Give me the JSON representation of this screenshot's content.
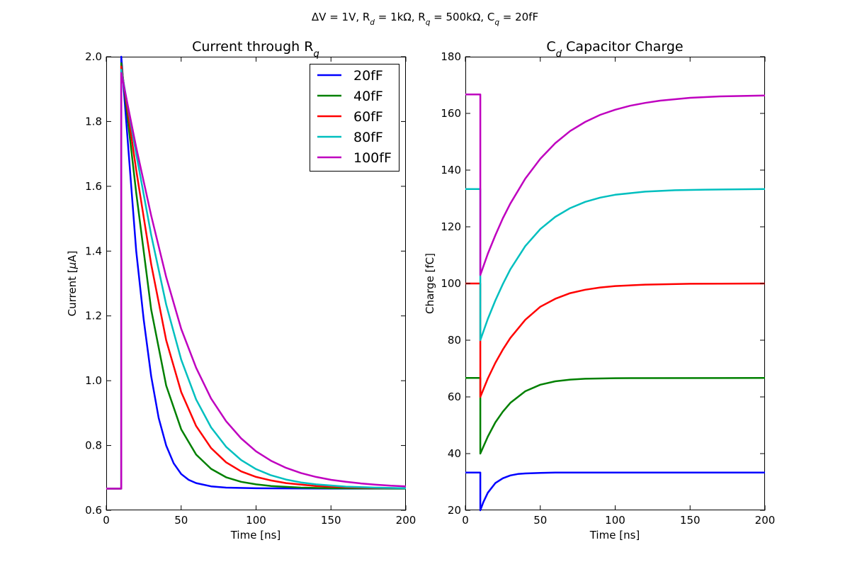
{
  "figure": {
    "suptitle_parts": [
      {
        "t": "ΔV = 1V, R"
      },
      {
        "t": "d",
        "sub": true
      },
      {
        "t": " = 1kΩ, R"
      },
      {
        "t": "q",
        "sub": true
      },
      {
        "t": " = 500kΩ, C"
      },
      {
        "t": "q",
        "sub": true
      },
      {
        "t": " = 20fF"
      }
    ]
  },
  "chart_data": [
    {
      "type": "line",
      "title_parts": [
        {
          "t": "Current through R"
        },
        {
          "t": "q",
          "sub": true
        }
      ],
      "xlabel": "Time [ns]",
      "ylabel_parts": [
        {
          "t": "Current ["
        },
        {
          "t": "μ",
          "italic": true
        },
        {
          "t": "A]"
        }
      ],
      "xlim": [
        0,
        200
      ],
      "ylim": [
        0.6,
        2.0
      ],
      "xticks": [
        "0",
        "50",
        "100",
        "150",
        "200"
      ],
      "yticks": [
        "0.6",
        "0.8",
        "1.0",
        "1.2",
        "1.4",
        "1.6",
        "1.8",
        "2.0"
      ],
      "grid": false,
      "legend": {
        "placement": "top-right"
      },
      "series": [
        {
          "name": "20fF",
          "color": "#0000ff",
          "points": [
            [
              0,
              0.667
            ],
            [
              10,
              0.667
            ],
            [
              10,
              2.0
            ],
            [
              20,
              1.4
            ],
            [
              25,
              1.188
            ],
            [
              30,
              1.014
            ],
            [
              35,
              0.885
            ],
            [
              40,
              0.8
            ],
            [
              45,
              0.745
            ],
            [
              50,
              0.712
            ],
            [
              55,
              0.694
            ],
            [
              60,
              0.684
            ],
            [
              70,
              0.674
            ],
            [
              80,
              0.67
            ],
            [
              100,
              0.668
            ],
            [
              150,
              0.667
            ],
            [
              200,
              0.667
            ]
          ]
        },
        {
          "name": "40fF",
          "color": "#008000",
          "points": [
            [
              0,
              0.667
            ],
            [
              10,
              0.667
            ],
            [
              10,
              1.98
            ],
            [
              20,
              1.58
            ],
            [
              30,
              1.22
            ],
            [
              40,
              0.985
            ],
            [
              50,
              0.85
            ],
            [
              60,
              0.772
            ],
            [
              70,
              0.728
            ],
            [
              80,
              0.702
            ],
            [
              90,
              0.688
            ],
            [
              100,
              0.68
            ],
            [
              110,
              0.675
            ],
            [
              130,
              0.67
            ],
            [
              150,
              0.668
            ],
            [
              200,
              0.667
            ]
          ]
        },
        {
          "name": "60fF",
          "color": "#ff0000",
          "points": [
            [
              0,
              0.667
            ],
            [
              10,
              0.667
            ],
            [
              10,
              1.97
            ],
            [
              20,
              1.65
            ],
            [
              30,
              1.36
            ],
            [
              40,
              1.125
            ],
            [
              50,
              0.965
            ],
            [
              60,
              0.86
            ],
            [
              70,
              0.792
            ],
            [
              80,
              0.748
            ],
            [
              90,
              0.72
            ],
            [
              100,
              0.703
            ],
            [
              110,
              0.692
            ],
            [
              120,
              0.684
            ],
            [
              140,
              0.675
            ],
            [
              160,
              0.671
            ],
            [
              180,
              0.669
            ],
            [
              200,
              0.668
            ]
          ]
        },
        {
          "name": "80fF",
          "color": "#00bfbf",
          "points": [
            [
              0,
              0.667
            ],
            [
              10,
              0.667
            ],
            [
              10,
              1.96
            ],
            [
              20,
              1.7
            ],
            [
              30,
              1.45
            ],
            [
              40,
              1.235
            ],
            [
              50,
              1.065
            ],
            [
              60,
              0.942
            ],
            [
              70,
              0.856
            ],
            [
              80,
              0.796
            ],
            [
              90,
              0.755
            ],
            [
              100,
              0.727
            ],
            [
              110,
              0.708
            ],
            [
              120,
              0.695
            ],
            [
              130,
              0.686
            ],
            [
              140,
              0.68
            ],
            [
              160,
              0.673
            ],
            [
              180,
              0.67
            ],
            [
              200,
              0.668
            ]
          ]
        },
        {
          "name": "100fF",
          "color": "#bf00bf",
          "points": [
            [
              0,
              0.667
            ],
            [
              10,
              0.667
            ],
            [
              10,
              1.95
            ],
            [
              20,
              1.72
            ],
            [
              30,
              1.51
            ],
            [
              40,
              1.32
            ],
            [
              50,
              1.16
            ],
            [
              60,
              1.04
            ],
            [
              70,
              0.945
            ],
            [
              80,
              0.875
            ],
            [
              90,
              0.822
            ],
            [
              100,
              0.782
            ],
            [
              110,
              0.753
            ],
            [
              120,
              0.731
            ],
            [
              130,
              0.715
            ],
            [
              140,
              0.703
            ],
            [
              150,
              0.694
            ],
            [
              160,
              0.688
            ],
            [
              170,
              0.683
            ],
            [
              180,
              0.679
            ],
            [
              190,
              0.676
            ],
            [
              200,
              0.674
            ]
          ]
        }
      ]
    },
    {
      "type": "line",
      "title_parts": [
        {
          "t": "C"
        },
        {
          "t": "d",
          "sub": true
        },
        {
          "t": " Capacitor Charge"
        }
      ],
      "xlabel": "Time [ns]",
      "ylabel_parts": [
        {
          "t": "Charge [fC]"
        }
      ],
      "xlim": [
        0,
        200
      ],
      "ylim": [
        20,
        180
      ],
      "xticks": [
        "0",
        "50",
        "100",
        "150",
        "200"
      ],
      "yticks": [
        "20",
        "40",
        "60",
        "80",
        "100",
        "120",
        "140",
        "160",
        "180"
      ],
      "grid": false,
      "series": [
        {
          "name": "20fF",
          "color": "#0000ff",
          "points": [
            [
              0,
              33.3
            ],
            [
              10,
              33.3
            ],
            [
              10,
              20.0
            ],
            [
              12,
              22.9
            ],
            [
              15,
              26.2
            ],
            [
              20,
              29.6
            ],
            [
              25,
              31.3
            ],
            [
              30,
              32.3
            ],
            [
              35,
              32.8
            ],
            [
              40,
              33.0
            ],
            [
              50,
              33.2
            ],
            [
              60,
              33.3
            ],
            [
              80,
              33.3
            ],
            [
              200,
              33.3
            ]
          ]
        },
        {
          "name": "40fF",
          "color": "#008000",
          "points": [
            [
              0,
              66.7
            ],
            [
              10,
              66.7
            ],
            [
              10,
              40.0
            ],
            [
              15,
              46.0
            ],
            [
              20,
              51.0
            ],
            [
              25,
              54.8
            ],
            [
              30,
              57.9
            ],
            [
              40,
              62.0
            ],
            [
              50,
              64.3
            ],
            [
              60,
              65.5
            ],
            [
              70,
              66.1
            ],
            [
              80,
              66.4
            ],
            [
              100,
              66.6
            ],
            [
              200,
              66.7
            ]
          ]
        },
        {
          "name": "60fF",
          "color": "#ff0000",
          "points": [
            [
              0,
              100
            ],
            [
              10,
              100
            ],
            [
              10,
              60
            ],
            [
              15,
              66.5
            ],
            [
              20,
              72.0
            ],
            [
              25,
              76.7
            ],
            [
              30,
              80.8
            ],
            [
              40,
              87.2
            ],
            [
              50,
              91.8
            ],
            [
              60,
              94.6
            ],
            [
              70,
              96.6
            ],
            [
              80,
              97.8
            ],
            [
              90,
              98.6
            ],
            [
              100,
              99.1
            ],
            [
              120,
              99.6
            ],
            [
              150,
              99.9
            ],
            [
              200,
              100
            ]
          ]
        },
        {
          "name": "80fF",
          "color": "#00bfbf",
          "points": [
            [
              0,
              133.3
            ],
            [
              10,
              133.3
            ],
            [
              10,
              80
            ],
            [
              15,
              87.5
            ],
            [
              20,
              94.0
            ],
            [
              25,
              99.8
            ],
            [
              30,
              105
            ],
            [
              40,
              113.2
            ],
            [
              50,
              119.2
            ],
            [
              60,
              123.5
            ],
            [
              70,
              126.6
            ],
            [
              80,
              128.8
            ],
            [
              90,
              130.3
            ],
            [
              100,
              131.3
            ],
            [
              120,
              132.4
            ],
            [
              140,
              132.9
            ],
            [
              160,
              133.1
            ],
            [
              200,
              133.3
            ]
          ]
        },
        {
          "name": "100fF",
          "color": "#bf00bf",
          "points": [
            [
              0,
              166.7
            ],
            [
              10,
              166.7
            ],
            [
              10,
              103
            ],
            [
              15,
              110.5
            ],
            [
              20,
              117.0
            ],
            [
              25,
              123.0
            ],
            [
              30,
              128.2
            ],
            [
              40,
              137.0
            ],
            [
              50,
              144.0
            ],
            [
              60,
              149.5
            ],
            [
              70,
              153.8
            ],
            [
              80,
              157.0
            ],
            [
              90,
              159.5
            ],
            [
              100,
              161.3
            ],
            [
              110,
              162.7
            ],
            [
              120,
              163.7
            ],
            [
              130,
              164.5
            ],
            [
              140,
              165.0
            ],
            [
              150,
              165.5
            ],
            [
              170,
              166.0
            ],
            [
              200,
              166.3
            ]
          ]
        }
      ]
    }
  ]
}
